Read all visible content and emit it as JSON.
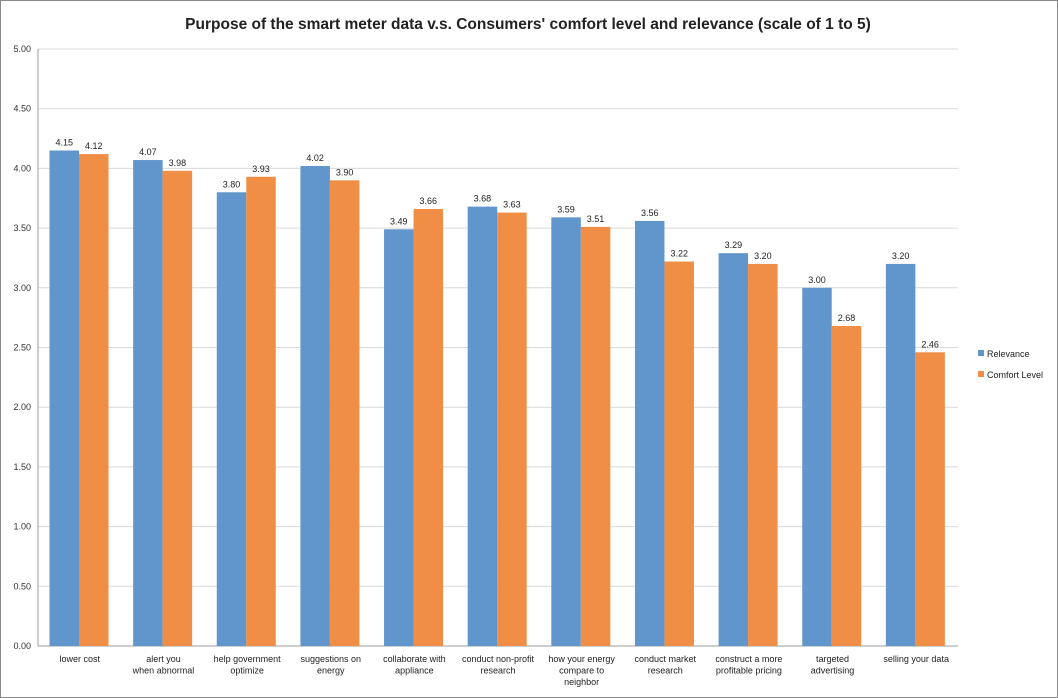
{
  "chart_data": {
    "type": "bar",
    "title": "Purpose of the smart meter data v.s. Consumers' comfort level and relevance (scale of 1 to 5)",
    "xlabel": "",
    "ylabel": "",
    "ylim": [
      0,
      5
    ],
    "yticks": [
      "0.00",
      "0.50",
      "1.00",
      "1.50",
      "2.00",
      "2.50",
      "3.00",
      "3.50",
      "4.00",
      "4.50",
      "5.00"
    ],
    "grid": true,
    "legend_position": "right",
    "categories": [
      [
        "lower cost"
      ],
      [
        "alert you",
        "when abnormal"
      ],
      [
        "help government",
        "optimize"
      ],
      [
        "suggestions on",
        "energy"
      ],
      [
        "collaborate with",
        "appliance"
      ],
      [
        "conduct non-profit",
        "research"
      ],
      [
        "how your energy",
        "compare to",
        "neighbor"
      ],
      [
        "conduct market",
        "research"
      ],
      [
        "construct a more",
        "profitable pricing"
      ],
      [
        "targeted",
        "advertising"
      ],
      [
        "selling your data"
      ]
    ],
    "series": [
      {
        "name": "Relevance",
        "color": "#6096cc",
        "values": [
          4.15,
          4.07,
          3.8,
          4.02,
          3.49,
          3.68,
          3.59,
          3.56,
          3.29,
          3.0,
          3.2
        ],
        "labels": [
          "4.15",
          "4.07",
          "3.80",
          "4.02",
          "3.49",
          "3.68",
          "3.59",
          "3.56",
          "3.29",
          "3.00",
          "3.20"
        ]
      },
      {
        "name": "Comfort Level",
        "color": "#f08e46",
        "values": [
          4.12,
          3.98,
          3.93,
          3.9,
          3.66,
          3.63,
          3.51,
          3.22,
          3.2,
          2.68,
          2.46
        ],
        "labels": [
          "4.12",
          "3.98",
          "3.93",
          "3.90",
          "3.66",
          "3.63",
          "3.51",
          "3.22",
          "3.20",
          "2.68",
          "2.46"
        ]
      }
    ]
  }
}
